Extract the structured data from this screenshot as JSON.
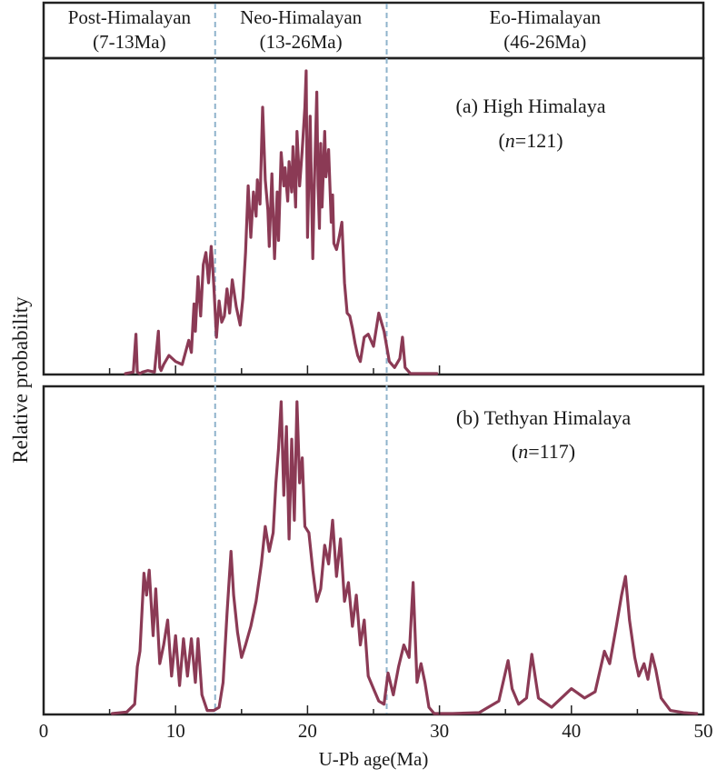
{
  "chart_data": {
    "type": "line",
    "xlabel": "U-Pb age(Ma)",
    "ylabel": "Relative probability",
    "xlim": [
      0,
      50
    ],
    "xticks": [
      0,
      10,
      20,
      30,
      40,
      50
    ],
    "tick_labels": [
      "0",
      "10",
      "20",
      "30",
      "40",
      "50"
    ],
    "line_color": "#8b3a55",
    "divider_color": "#8fb3cc",
    "dividers": [
      13,
      26
    ],
    "periods": [
      {
        "name": "Post-Himalayan",
        "range": "(7-13Ma)",
        "from": 0,
        "to": 13
      },
      {
        "name": "Neo-Himalayan",
        "range": "(13-26Ma)",
        "from": 13,
        "to": 26
      },
      {
        "name": "Eo-Himalayan",
        "range": "(46-26Ma)",
        "from": 26,
        "to": 50
      }
    ],
    "panels": [
      {
        "label": "(a) High Himalaya",
        "n_prefix": "n",
        "n_value": "=121",
        "series": {
          "x": [
            6.2,
            6.8,
            7.0,
            7.1,
            7.3,
            7.5,
            7.9,
            8.4,
            8.7,
            8.8,
            8.9,
            9.1,
            9.5,
            10.0,
            10.5,
            11.0,
            11.2,
            11.4,
            11.5,
            11.7,
            11.9,
            12.1,
            12.3,
            12.5,
            12.7,
            12.8,
            12.9,
            13.1,
            13.3,
            13.5,
            13.7,
            13.9,
            14.1,
            14.3,
            14.6,
            14.9,
            15.1,
            15.3,
            15.5,
            15.7,
            15.9,
            16.1,
            16.2,
            16.4,
            16.6,
            16.8,
            17.0,
            17.1,
            17.3,
            17.5,
            17.7,
            17.8,
            18.0,
            18.2,
            18.3,
            18.5,
            18.6,
            18.8,
            18.9,
            19.1,
            19.2,
            19.4,
            19.6,
            19.8,
            19.9,
            20.0,
            20.2,
            20.4,
            20.5,
            20.7,
            20.8,
            20.9,
            21.0,
            21.1,
            21.3,
            21.4,
            21.6,
            21.8,
            21.9,
            22.0,
            22.2,
            22.4,
            22.6,
            22.8,
            23.0,
            23.2,
            23.4,
            23.6,
            23.8,
            24.0,
            24.3,
            24.6,
            25.0,
            25.4,
            25.8,
            26.2,
            26.6,
            27.0,
            27.2,
            27.4,
            27.6,
            27.8,
            28.2,
            29.0,
            29.8
          ],
          "y": [
            0,
            0.005,
            0.13,
            0.005,
            0,
            0.005,
            0.01,
            0.005,
            0.14,
            0.02,
            0.01,
            0.03,
            0.06,
            0.04,
            0.03,
            0.11,
            0.07,
            0.23,
            0.14,
            0.32,
            0.19,
            0.36,
            0.4,
            0.3,
            0.42,
            0.36,
            0.29,
            0.12,
            0.24,
            0.17,
            0.19,
            0.28,
            0.2,
            0.31,
            0.22,
            0.16,
            0.25,
            0.4,
            0.62,
            0.45,
            0.6,
            0.52,
            0.64,
            0.56,
            0.88,
            0.64,
            0.54,
            0.42,
            0.66,
            0.38,
            0.6,
            0.44,
            0.73,
            0.62,
            0.68,
            0.57,
            0.7,
            0.6,
            0.75,
            0.55,
            0.8,
            0.62,
            0.74,
            0.88,
            1.0,
            0.45,
            0.85,
            0.38,
            0.6,
            0.93,
            0.62,
            0.48,
            0.76,
            0.55,
            0.8,
            0.65,
            0.74,
            0.5,
            0.59,
            0.43,
            0.41,
            0.45,
            0.5,
            0.3,
            0.2,
            0.19,
            0.15,
            0.1,
            0.06,
            0.04,
            0.12,
            0.13,
            0.09,
            0.2,
            0.14,
            0.04,
            0.02,
            0.05,
            0.12,
            0.02,
            0.01,
            0,
            0,
            0,
            0
          ]
        }
      },
      {
        "label": "(b) Tethyan Himalaya",
        "n_prefix": "n",
        "n_value": "=117",
        "series": {
          "x": [
            5.2,
            6.3,
            6.9,
            7.1,
            7.3,
            7.6,
            7.8,
            8.0,
            8.3,
            8.5,
            8.8,
            9.1,
            9.4,
            9.7,
            10.0,
            10.3,
            10.6,
            10.9,
            11.2,
            11.5,
            11.7,
            12.0,
            12.4,
            12.9,
            13.3,
            13.6,
            13.9,
            14.2,
            14.4,
            14.7,
            15.0,
            15.3,
            15.7,
            16.1,
            16.5,
            16.8,
            17.1,
            17.4,
            17.6,
            17.8,
            18.0,
            18.2,
            18.4,
            18.6,
            18.8,
            19.0,
            19.2,
            19.4,
            19.6,
            19.8,
            20.1,
            20.4,
            20.7,
            21.0,
            21.3,
            21.6,
            21.9,
            22.2,
            22.5,
            22.8,
            23.1,
            23.4,
            23.7,
            24.0,
            24.3,
            24.6,
            25.0,
            25.4,
            25.8,
            26.1,
            26.5,
            26.9,
            27.3,
            27.7,
            28.0,
            28.3,
            28.6,
            28.9,
            29.2,
            29.6,
            31.0,
            33.0,
            34.5,
            35.2,
            35.5,
            36.0,
            36.6,
            37.0,
            37.5,
            38.5,
            39.5,
            40.0,
            41.0,
            41.8,
            42.5,
            42.9,
            43.4,
            43.8,
            44.1,
            44.4,
            44.8,
            45.1,
            45.5,
            45.8,
            46.1,
            46.4,
            46.8,
            47.5,
            48.5,
            49.5
          ],
          "y": [
            0,
            0.005,
            0.03,
            0.15,
            0.2,
            0.45,
            0.38,
            0.46,
            0.25,
            0.4,
            0.16,
            0.22,
            0.3,
            0.12,
            0.25,
            0.09,
            0.24,
            0.12,
            0.24,
            0.1,
            0.24,
            0.06,
            0.01,
            0.01,
            0.02,
            0.1,
            0.32,
            0.52,
            0.38,
            0.26,
            0.18,
            0.22,
            0.28,
            0.36,
            0.48,
            0.6,
            0.52,
            0.58,
            0.74,
            0.85,
            1.0,
            0.7,
            0.92,
            0.56,
            0.88,
            0.62,
            1.0,
            0.74,
            0.82,
            0.6,
            0.58,
            0.46,
            0.36,
            0.4,
            0.54,
            0.48,
            0.62,
            0.44,
            0.56,
            0.36,
            0.42,
            0.28,
            0.38,
            0.22,
            0.3,
            0.12,
            0.08,
            0.04,
            0.03,
            0.13,
            0.06,
            0.15,
            0.22,
            0.18,
            0.42,
            0.1,
            0.16,
            0.1,
            0.02,
            0.0,
            0,
            0.003,
            0.04,
            0.17,
            0.08,
            0.03,
            0.05,
            0.19,
            0.05,
            0.02,
            0.06,
            0.08,
            0.05,
            0.07,
            0.2,
            0.16,
            0.28,
            0.38,
            0.44,
            0.3,
            0.18,
            0.12,
            0.16,
            0.11,
            0.19,
            0.14,
            0.05,
            0.01,
            0.003,
            0
          ]
        }
      }
    ]
  }
}
